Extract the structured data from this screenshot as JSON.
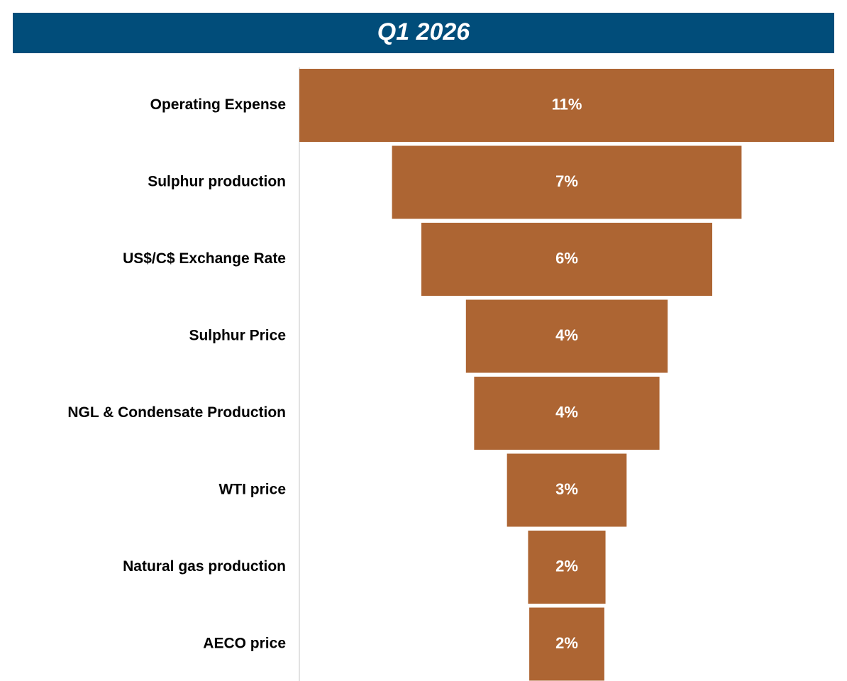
{
  "chart_data": {
    "type": "funnel",
    "title": "Q1 2026",
    "categories": [
      "Operating Expense",
      "Sulphur production",
      "US$/C$ Exchange Rate",
      "Sulphur Price",
      "NGL & Condensate Production",
      "WTI price",
      "Natural gas production",
      "AECO price"
    ],
    "values": [
      11.4,
      7.45,
      6.2,
      4.3,
      3.95,
      2.55,
      1.65,
      1.6
    ],
    "value_labels": [
      "11%",
      "7%",
      "6%",
      "4%",
      "4%",
      "3%",
      "2%",
      "2%"
    ],
    "color": "#ad6533"
  }
}
